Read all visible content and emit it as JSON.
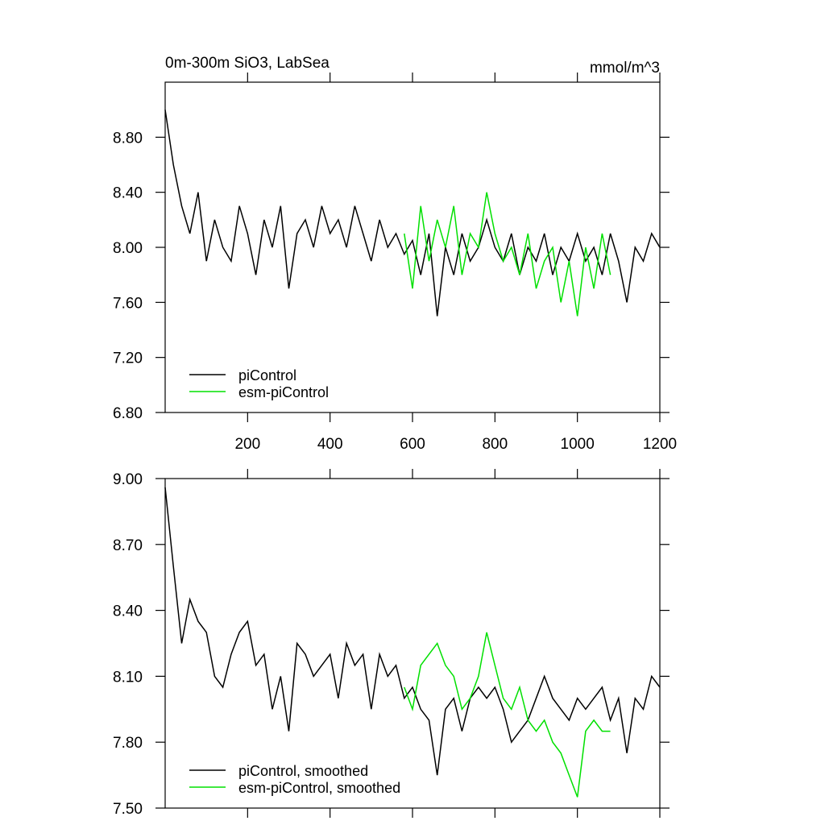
{
  "chart_data": [
    {
      "type": "line",
      "title": "0m-300m SiO3, LabSea",
      "subtitle": "mmol/m^3",
      "xlim": [
        0,
        1200
      ],
      "xticks": [
        200,
        400,
        600,
        800,
        1000,
        1200
      ],
      "ylim": [
        6.8,
        9.2
      ],
      "yticks": [
        {
          "value": 6.8,
          "label": "6.80"
        },
        {
          "value": 7.2,
          "label": "7.20"
        },
        {
          "value": 7.6,
          "label": "7.60"
        },
        {
          "value": 8.0,
          "label": "8.00"
        },
        {
          "value": 8.4,
          "label": "8.40"
        },
        {
          "value": 8.8,
          "label": "8.80"
        }
      ],
      "legend": "lower left",
      "series": [
        {
          "name": "piControl",
          "color": "#000000",
          "x": [
            0,
            20,
            40,
            60,
            80,
            100,
            120,
            140,
            160,
            180,
            200,
            220,
            240,
            260,
            280,
            300,
            320,
            340,
            360,
            380,
            400,
            420,
            440,
            460,
            480,
            500,
            520,
            540,
            560,
            580,
            600,
            620,
            640,
            660,
            680,
            700,
            720,
            740,
            760,
            780,
            800,
            820,
            840,
            860,
            880,
            900,
            920,
            940,
            960,
            980,
            1000,
            1020,
            1040,
            1060,
            1080,
            1100,
            1120,
            1140,
            1160,
            1180,
            1200
          ],
          "values": [
            9.0,
            8.6,
            8.3,
            8.1,
            8.4,
            7.9,
            8.2,
            8.0,
            7.9,
            8.3,
            8.1,
            7.8,
            8.2,
            8.0,
            8.3,
            7.7,
            8.1,
            8.2,
            8.0,
            8.3,
            8.1,
            8.2,
            8.0,
            8.3,
            8.1,
            7.9,
            8.2,
            8.0,
            8.1,
            7.95,
            8.05,
            7.8,
            8.1,
            7.5,
            8.0,
            7.8,
            8.1,
            7.9,
            8.0,
            8.2,
            8.0,
            7.9,
            8.1,
            7.8,
            8.0,
            7.9,
            8.1,
            7.8,
            8.0,
            7.9,
            8.1,
            7.9,
            8.0,
            7.8,
            8.1,
            7.9,
            7.6,
            8.0,
            7.9,
            8.1,
            8.0
          ]
        },
        {
          "name": "esm-piControl",
          "color": "#00e000",
          "x": [
            580,
            600,
            620,
            640,
            660,
            680,
            700,
            720,
            740,
            760,
            780,
            800,
            820,
            840,
            860,
            880,
            900,
            920,
            940,
            960,
            980,
            1000,
            1020,
            1040,
            1060,
            1080
          ],
          "values": [
            8.1,
            7.7,
            8.3,
            7.9,
            8.2,
            8.0,
            8.3,
            7.8,
            8.1,
            8.0,
            8.4,
            8.1,
            7.9,
            8.0,
            7.8,
            8.1,
            7.7,
            7.9,
            8.0,
            7.6,
            7.9,
            7.5,
            8.0,
            7.7,
            8.1,
            7.8
          ]
        }
      ]
    },
    {
      "type": "line",
      "xlim": [
        0,
        1200
      ],
      "xticks": [
        200,
        400,
        600,
        800,
        1000,
        1200
      ],
      "ylim": [
        7.5,
        9.0
      ],
      "yticks": [
        {
          "value": 7.5,
          "label": "7.50"
        },
        {
          "value": 7.8,
          "label": "7.80"
        },
        {
          "value": 8.1,
          "label": "8.10"
        },
        {
          "value": 8.4,
          "label": "8.40"
        },
        {
          "value": 8.7,
          "label": "8.70"
        },
        {
          "value": 9.0,
          "label": "9.00"
        }
      ],
      "legend": "lower left",
      "series": [
        {
          "name": "piControl, smoothed",
          "color": "#000000",
          "x": [
            0,
            20,
            40,
            60,
            80,
            100,
            120,
            140,
            160,
            180,
            200,
            220,
            240,
            260,
            280,
            300,
            320,
            340,
            360,
            380,
            400,
            420,
            440,
            460,
            480,
            500,
            520,
            540,
            560,
            580,
            600,
            620,
            640,
            660,
            680,
            700,
            720,
            740,
            760,
            780,
            800,
            820,
            840,
            860,
            880,
            900,
            920,
            940,
            960,
            980,
            1000,
            1020,
            1040,
            1060,
            1080,
            1100,
            1120,
            1140,
            1160,
            1180,
            1200
          ],
          "values": [
            8.96,
            8.6,
            8.25,
            8.45,
            8.35,
            8.3,
            8.1,
            8.05,
            8.2,
            8.3,
            8.35,
            8.15,
            8.2,
            7.95,
            8.1,
            7.85,
            8.25,
            8.2,
            8.1,
            8.15,
            8.2,
            8.0,
            8.25,
            8.15,
            8.2,
            7.95,
            8.2,
            8.1,
            8.15,
            8.0,
            8.05,
            7.95,
            7.9,
            7.65,
            7.95,
            8.0,
            7.85,
            8.0,
            8.05,
            8.0,
            8.05,
            7.95,
            7.8,
            7.85,
            7.9,
            8.0,
            8.1,
            8.0,
            7.95,
            7.9,
            8.0,
            7.95,
            8.0,
            8.05,
            7.9,
            8.0,
            7.75,
            8.0,
            7.95,
            8.1,
            8.05
          ]
        },
        {
          "name": "esm-piControl, smoothed",
          "color": "#00e000",
          "x": [
            580,
            600,
            620,
            640,
            660,
            680,
            700,
            720,
            740,
            760,
            780,
            800,
            820,
            840,
            860,
            880,
            900,
            920,
            940,
            960,
            980,
            1000,
            1020,
            1040,
            1060,
            1080
          ],
          "values": [
            8.05,
            7.95,
            8.15,
            8.2,
            8.25,
            8.15,
            8.1,
            7.95,
            8.0,
            8.1,
            8.3,
            8.15,
            8.0,
            7.95,
            8.05,
            7.9,
            7.85,
            7.9,
            7.8,
            7.75,
            7.65,
            7.55,
            7.85,
            7.9,
            7.85,
            7.85
          ]
        }
      ]
    }
  ]
}
